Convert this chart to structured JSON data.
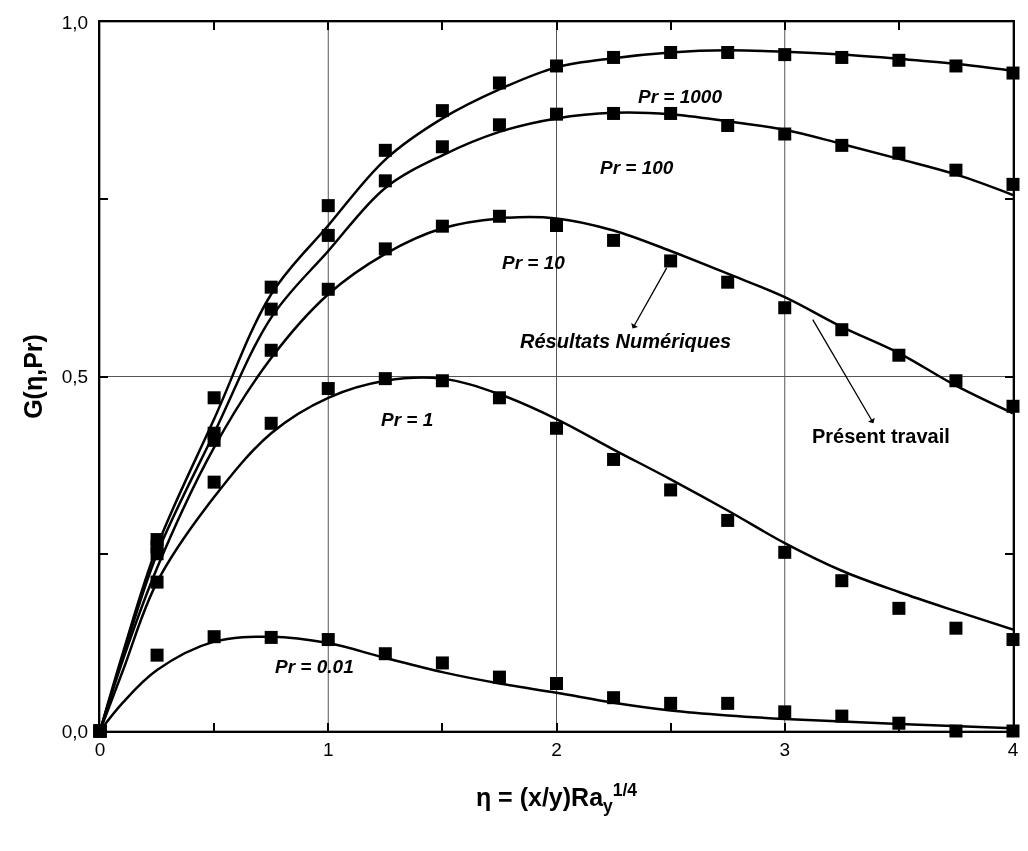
{
  "chart_data": {
    "type": "line",
    "xlabel": "η = (x/y)Ra$_{y}$$^{1/4}$",
    "ylabel": "G(η,Pr)",
    "xlim": [
      0,
      4
    ],
    "ylim": [
      0,
      1
    ],
    "xticks": [
      0,
      {
        "value": 0.5,
        "label": null
      },
      1,
      {
        "value": 1.5,
        "label": null
      },
      2,
      {
        "value": 2.5,
        "label": null
      },
      3,
      {
        "value": 3.5,
        "label": null
      },
      4
    ],
    "yticks": [
      {
        "value": 0,
        "label": "0,0"
      },
      {
        "value": 0.25,
        "label": null
      },
      {
        "value": 0.5,
        "label": "0,5"
      },
      {
        "value": 0.75,
        "label": null
      },
      {
        "value": 1,
        "label": "1,0"
      }
    ],
    "grid": true,
    "series": [
      {
        "color": "#000000",
        "marker": "none",
        "line_style": "solid",
        "x": [
          0,
          0.1,
          0.25,
          0.5,
          0.75,
          1,
          1.25,
          1.5,
          1.75,
          2,
          2.25,
          2.5,
          2.75,
          3,
          3.25,
          3.5,
          3.75,
          4
        ],
        "values": [
          0,
          0.11,
          0.26,
          0.44,
          0.616,
          0.713,
          0.806,
          0.864,
          0.905,
          0.936,
          0.949,
          0.957,
          0.96,
          0.958,
          0.954,
          0.948,
          0.941,
          0.931
        ]
      },
      {
        "color": "#000000",
        "marker": "none",
        "line_style": "solid",
        "x": [
          0,
          0.1,
          0.25,
          0.5,
          0.75,
          1,
          1.25,
          1.5,
          1.75,
          2,
          2.25,
          2.5,
          2.75,
          3,
          3.25,
          3.5,
          3.75,
          4
        ],
        "values": [
          0,
          0.105,
          0.25,
          0.42,
          0.583,
          0.677,
          0.766,
          0.812,
          0.845,
          0.864,
          0.872,
          0.87,
          0.86,
          0.848,
          0.828,
          0.807,
          0.785,
          0.756
        ]
      },
      {
        "color": "#000000",
        "marker": "none",
        "line_style": "solid",
        "x": [
          0,
          0.1,
          0.25,
          0.5,
          0.75,
          1,
          1.25,
          1.5,
          1.75,
          2,
          2.25,
          2.5,
          2.75,
          3,
          3.25,
          3.5,
          3.75,
          4
        ],
        "values": [
          0,
          0.1,
          0.23,
          0.4,
          0.526,
          0.616,
          0.673,
          0.709,
          0.723,
          0.723,
          0.706,
          0.677,
          0.645,
          0.612,
          0.57,
          0.533,
          0.487,
          0.448
        ]
      },
      {
        "color": "#000000",
        "marker": "none",
        "line_style": "solid",
        "x": [
          0,
          0.1,
          0.25,
          0.5,
          0.75,
          1,
          1.25,
          1.5,
          1.75,
          2,
          2.25,
          2.5,
          2.75,
          3,
          3.25,
          3.5,
          3.75,
          4
        ],
        "values": [
          0,
          0.085,
          0.21,
          0.33,
          0.42,
          0.47,
          0.494,
          0.497,
          0.475,
          0.44,
          0.397,
          0.355,
          0.311,
          0.265,
          0.226,
          0.196,
          0.169,
          0.143
        ]
      },
      {
        "color": "#000000",
        "marker": "none",
        "line_style": "solid",
        "x": [
          0,
          0.1,
          0.25,
          0.5,
          0.75,
          1,
          1.25,
          1.5,
          1.75,
          2,
          2.25,
          2.5,
          2.75,
          3,
          3.5,
          4
        ],
        "values": [
          0,
          0.04,
          0.086,
          0.126,
          0.133,
          0.124,
          0.103,
          0.083,
          0.067,
          0.054,
          0.04,
          0.029,
          0.022,
          0.017,
          0.01,
          0.004
        ]
      },
      {
        "type": "scatter",
        "color": "#000000",
        "marker": "square",
        "x": [
          0,
          0.25,
          0.5,
          0.75,
          1,
          1.25,
          1.5,
          1.75,
          2,
          2.25,
          2.5,
          2.75,
          3,
          3.25,
          3.5,
          3.75,
          4
        ],
        "values": [
          0,
          0.27,
          0.47,
          0.626,
          0.741,
          0.819,
          0.875,
          0.914,
          0.938,
          0.95,
          0.957,
          0.957,
          0.954,
          0.95,
          0.946,
          0.938,
          0.928
        ]
      },
      {
        "type": "scatter",
        "color": "#000000",
        "marker": "square",
        "x": [
          0,
          0.25,
          0.5,
          0.75,
          1,
          1.25,
          1.5,
          1.75,
          2,
          2.25,
          2.5,
          2.75,
          3,
          3.25,
          3.5,
          3.75,
          4
        ],
        "values": [
          0,
          0.26,
          0.42,
          0.595,
          0.699,
          0.776,
          0.824,
          0.855,
          0.87,
          0.871,
          0.871,
          0.854,
          0.842,
          0.826,
          0.815,
          0.791,
          0.771
        ]
      },
      {
        "type": "scatter",
        "color": "#000000",
        "marker": "square",
        "x": [
          0,
          0.25,
          0.5,
          0.75,
          1,
          1.25,
          1.5,
          1.75,
          2,
          2.25,
          2.5,
          2.75,
          3,
          3.25,
          3.5,
          3.75,
          4
        ],
        "values": [
          0,
          0.25,
          0.41,
          0.537,
          0.623,
          0.68,
          0.712,
          0.726,
          0.713,
          0.692,
          0.663,
          0.633,
          0.597,
          0.566,
          0.53,
          0.494,
          0.458
        ]
      },
      {
        "type": "scatter",
        "color": "#000000",
        "marker": "square",
        "x": [
          0,
          0.25,
          0.5,
          0.75,
          1,
          1.25,
          1.5,
          1.75,
          2,
          2.25,
          2.5,
          2.75,
          3,
          3.25,
          3.5,
          3.75,
          4
        ],
        "values": [
          0,
          0.21,
          0.351,
          0.434,
          0.483,
          0.497,
          0.494,
          0.47,
          0.427,
          0.383,
          0.34,
          0.297,
          0.252,
          0.212,
          0.173,
          0.145,
          0.129
        ]
      },
      {
        "type": "scatter",
        "color": "#000000",
        "marker": "square",
        "x": [
          0,
          0.25,
          0.5,
          0.75,
          1,
          1.25,
          1.5,
          1.75,
          2,
          2.25,
          2.5,
          2.75,
          3,
          3.25,
          3.5,
          3.75,
          4
        ],
        "values": [
          0,
          0.107,
          0.133,
          0.132,
          0.129,
          0.109,
          0.096,
          0.076,
          0.067,
          0.047,
          0.039,
          0.039,
          0.027,
          0.021,
          0.011,
          0.0,
          0.0
        ]
      }
    ],
    "annotations": [
      "Pr = 1000",
      "Pr = 100",
      "Pr = 10",
      "Pr = 1",
      "Pr = 0.01",
      {
        "text": "Résultats Numériques",
        "x": 2.5,
        "y": 0.663
      },
      {
        "text": "Présent travail",
        "x": 3.105,
        "y": 0.59
      }
    ]
  }
}
